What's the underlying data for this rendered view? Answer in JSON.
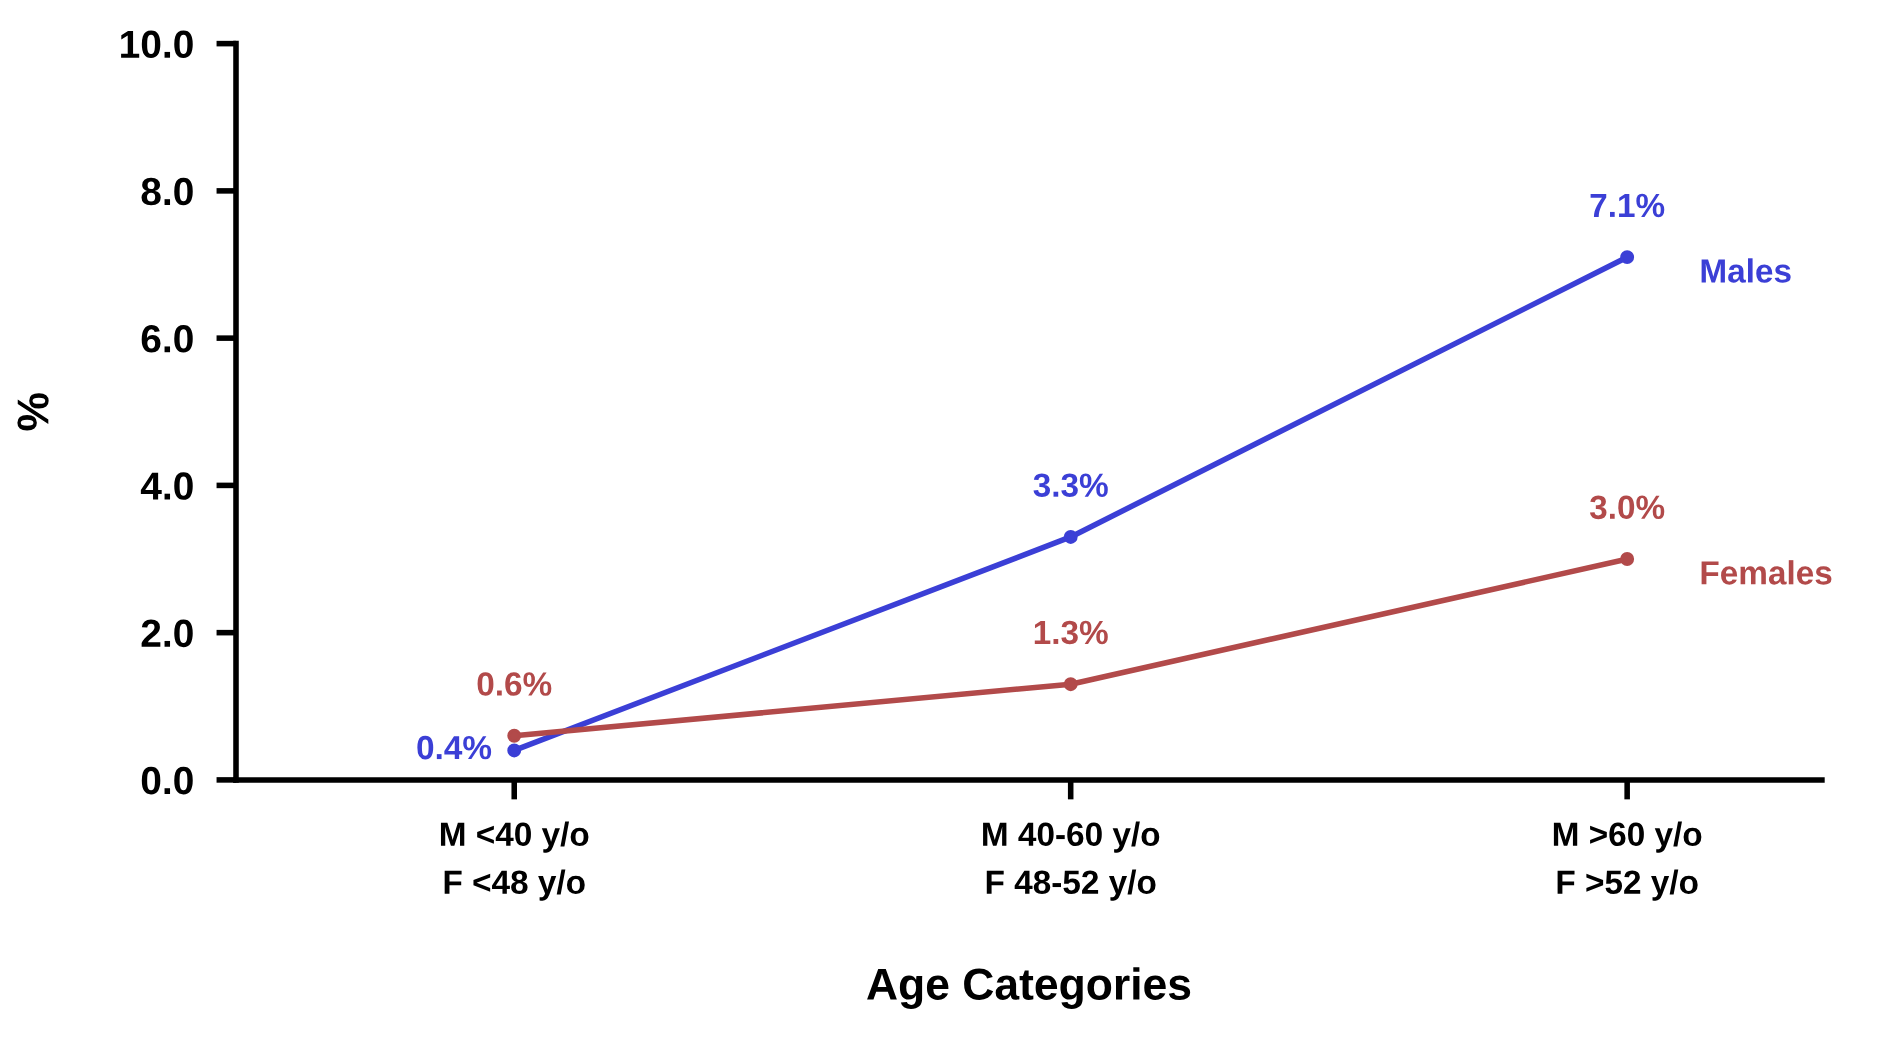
{
  "chart_data": {
    "type": "line",
    "xlabel": "Age Categories",
    "ylabel": "%",
    "categories": [
      "M <40 y/o\nF <48 y/o",
      "M 40-60 y/o\nF 48-52 y/o",
      "M >60 y/o\nF >52 y/o"
    ],
    "series": [
      {
        "name": "Males",
        "color": "#3b3fd6",
        "values": [
          0.4,
          3.3,
          7.1
        ],
        "value_labels": [
          "0.4%",
          "3.3%",
          "7.1%"
        ]
      },
      {
        "name": "Females",
        "color": "#b24a4a",
        "values": [
          0.6,
          1.3,
          3.0
        ],
        "value_labels": [
          "0.6%",
          "1.3%",
          "3.0%"
        ]
      }
    ],
    "ylim": [
      0,
      10
    ],
    "yticks": [
      {
        "value": 0,
        "label": "0.0"
      },
      {
        "value": 2,
        "label": "2.0"
      },
      {
        "value": 4,
        "label": "4.0"
      },
      {
        "value": 6,
        "label": "6.0"
      },
      {
        "value": 8,
        "label": "8.0"
      },
      {
        "value": 10,
        "label": "10.0"
      }
    ],
    "marker": "circle",
    "line_style": "solid",
    "grid": false,
    "legend": false
  }
}
